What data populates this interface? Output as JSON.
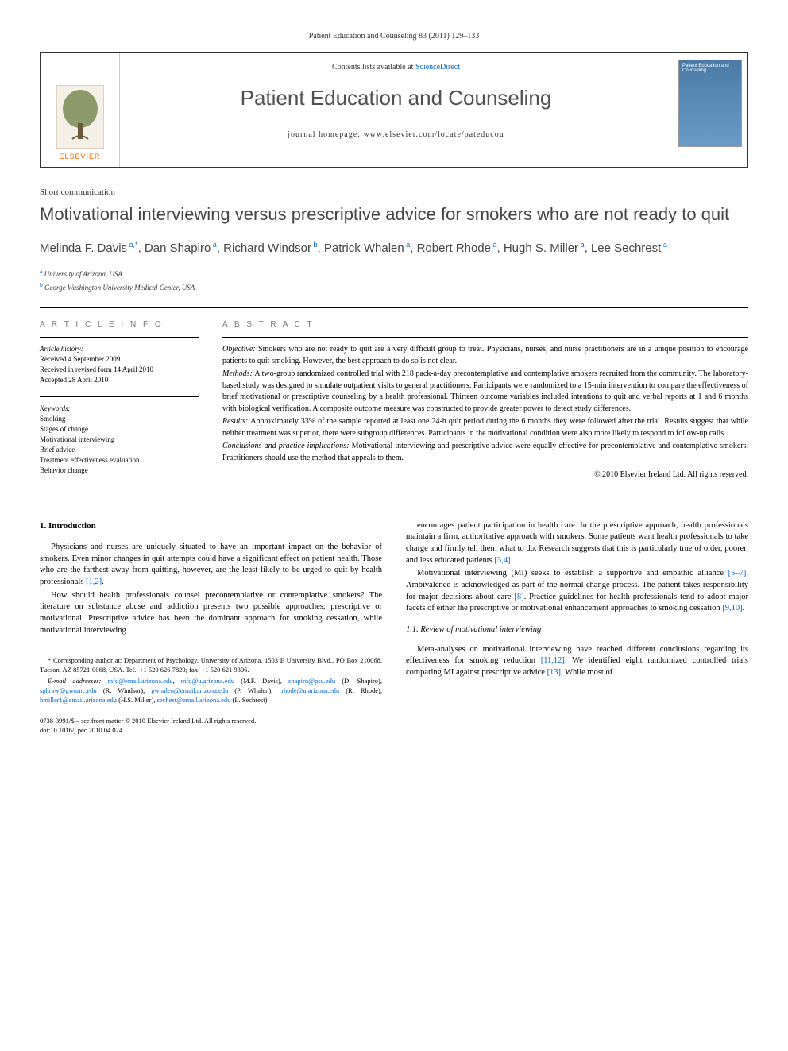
{
  "running_header": "Patient Education and Counseling 83 (2011) 129–133",
  "masthead": {
    "elsevier": "ELSEVIER",
    "contents_prefix": "Contents lists available at ",
    "contents_link": "ScienceDirect",
    "journal_name": "Patient Education and Counseling",
    "homepage_prefix": "journal homepage: ",
    "homepage_url": "www.elsevier.com/locate/pateducou",
    "cover_title": "Patient Education and Counseling"
  },
  "article": {
    "type": "Short communication",
    "title": "Motivational interviewing versus prescriptive advice for smokers who are not ready to quit",
    "authors_html": "Melinda F. Davis<sup> a,*</sup>, Dan Shapiro<sup> a</sup>, Richard Windsor<sup> b</sup>, Patrick Whalen<sup> a</sup>, Robert Rhode<sup> a</sup>, Hugh S. Miller<sup> a</sup>, Lee Sechrest<sup> a</sup>",
    "affiliations": [
      {
        "sup": "a",
        "text": "University of Arizona, USA"
      },
      {
        "sup": "b",
        "text": "George Washington University Medical Center, USA"
      }
    ]
  },
  "article_info": {
    "heading": "A R T I C L E   I N F O",
    "history_label": "Article history:",
    "history": [
      "Received 4 September 2009",
      "Received in revised form 14 April 2010",
      "Accepted 28 April 2010"
    ],
    "keywords_label": "Keywords:",
    "keywords": [
      "Smoking",
      "Stages of change",
      "Motivational interviewing",
      "Brief advice",
      "Treatment effectiveness evaluation",
      "Behavior change"
    ]
  },
  "abstract": {
    "heading": "A B S T R A C T",
    "sections": [
      {
        "label": "Objective:",
        "text": "Smokers who are not ready to quit are a very difficult group to treat. Physicians, nurses, and nurse practitioners are in a unique position to encourage patients to quit smoking. However, the best approach to do so is not clear."
      },
      {
        "label": "Methods:",
        "text": "A two-group randomized controlled trial with 218 pack-a-day precontemplative and contemplative smokers recruited from the community. The laboratory-based study was designed to simulate outpatient visits to general practitioners. Participants were randomized to a 15-min intervention to compare the effectiveness of brief motivational or prescriptive counseling by a health professional. Thirteen outcome variables included intentions to quit and verbal reports at 1 and 6 months with biological verification. A composite outcome measure was constructed to provide greater power to detect study differences."
      },
      {
        "label": "Results:",
        "text": "Approximately 33% of the sample reported at least one 24-h quit period during the 6 months they were followed after the trial. Results suggest that while neither treatment was superior, there were subgroup differences. Participants in the motivational condition were also more likely to respond to follow-up calls."
      },
      {
        "label": "Conclusions and practice implications:",
        "text": "Motivational interviewing and prescriptive advice were equally effective for precontemplative and contemplative smokers. Practitioners should use the method that appeals to them."
      }
    ],
    "copyright": "© 2010 Elsevier Ireland Ltd. All rights reserved."
  },
  "body": {
    "intro_heading": "1. Introduction",
    "left_paras": [
      "Physicians and nurses are uniquely situated to have an important impact on the behavior of smokers. Even minor changes in quit attempts could have a significant effect on patient health. Those who are the farthest away from quitting, however, are the least likely to be urged to quit by health professionals [1,2].",
      "How should health professionals counsel precontemplative or contemplative smokers? The literature on substance abuse and addiction presents two possible approaches; prescriptive or motivational. Prescriptive advice has been the dominant approach for smoking cessation, while motivational interviewing"
    ],
    "right_paras": [
      "encourages patient participation in health care. In the prescriptive approach, health professionals maintain a firm, authoritative approach with smokers. Some patients want health professionals to take charge and firmly tell them what to do. Research suggests that this is particularly true of older, poorer, and less educated patients [3,4].",
      "Motivational interviewing (MI) seeks to establish a supportive and empathic alliance [5–7]. Ambivalence is acknowledged as part of the normal change process. The patient takes responsibility for major decisions about care [8]. Practice guidelines for health professionals tend to adopt major facets of either the prescriptive or motivational enhancement approaches to smoking cessation [9,10]."
    ],
    "subsection_heading": "1.1. Review of motivational interviewing",
    "subsection_para": "Meta-analyses on motivational interviewing have reached different conclusions regarding its effectiveness for smoking reduction [11,12]. We identified eight randomized controlled trials comparing MI against prescriptive advice [13]. While most of"
  },
  "footnotes": {
    "corr_label": "* Corresponding author at:",
    "corr_text": "Department of Psychology, University of Arizona, 1503 E University Blvd., PO Box 210068, Tucson, AZ 85721-0068, USA. Tel.: +1 520 626 7820; fax: +1 520 621 9306.",
    "email_label": "E-mail addresses:",
    "emails_html": "mfd@email.arizona.edu, mfd@u.arizona.edu (M.F. Davis), shapiro@psu.edu (D. Shapiro), sphraw@gwumc.edu (R. Windsor), pwhalen@email.arizona.edu (P. Whalen), rrhode@u.arizona.edu (R. Rhode), hmiller1@email.arizona.edu (H.S. Miller), sechest@email.arizona.edu (L. Sechrest)."
  },
  "bottom": {
    "issn_line": "0738-3991/$ – see front matter © 2010 Elsevier Ireland Ltd. All rights reserved.",
    "doi_line": "doi:10.1016/j.pec.2010.04.024"
  },
  "colors": {
    "link": "#0066cc",
    "elsevier_orange": "#ff6600",
    "title_gray": "#444444",
    "heading_gray": "#777777"
  }
}
